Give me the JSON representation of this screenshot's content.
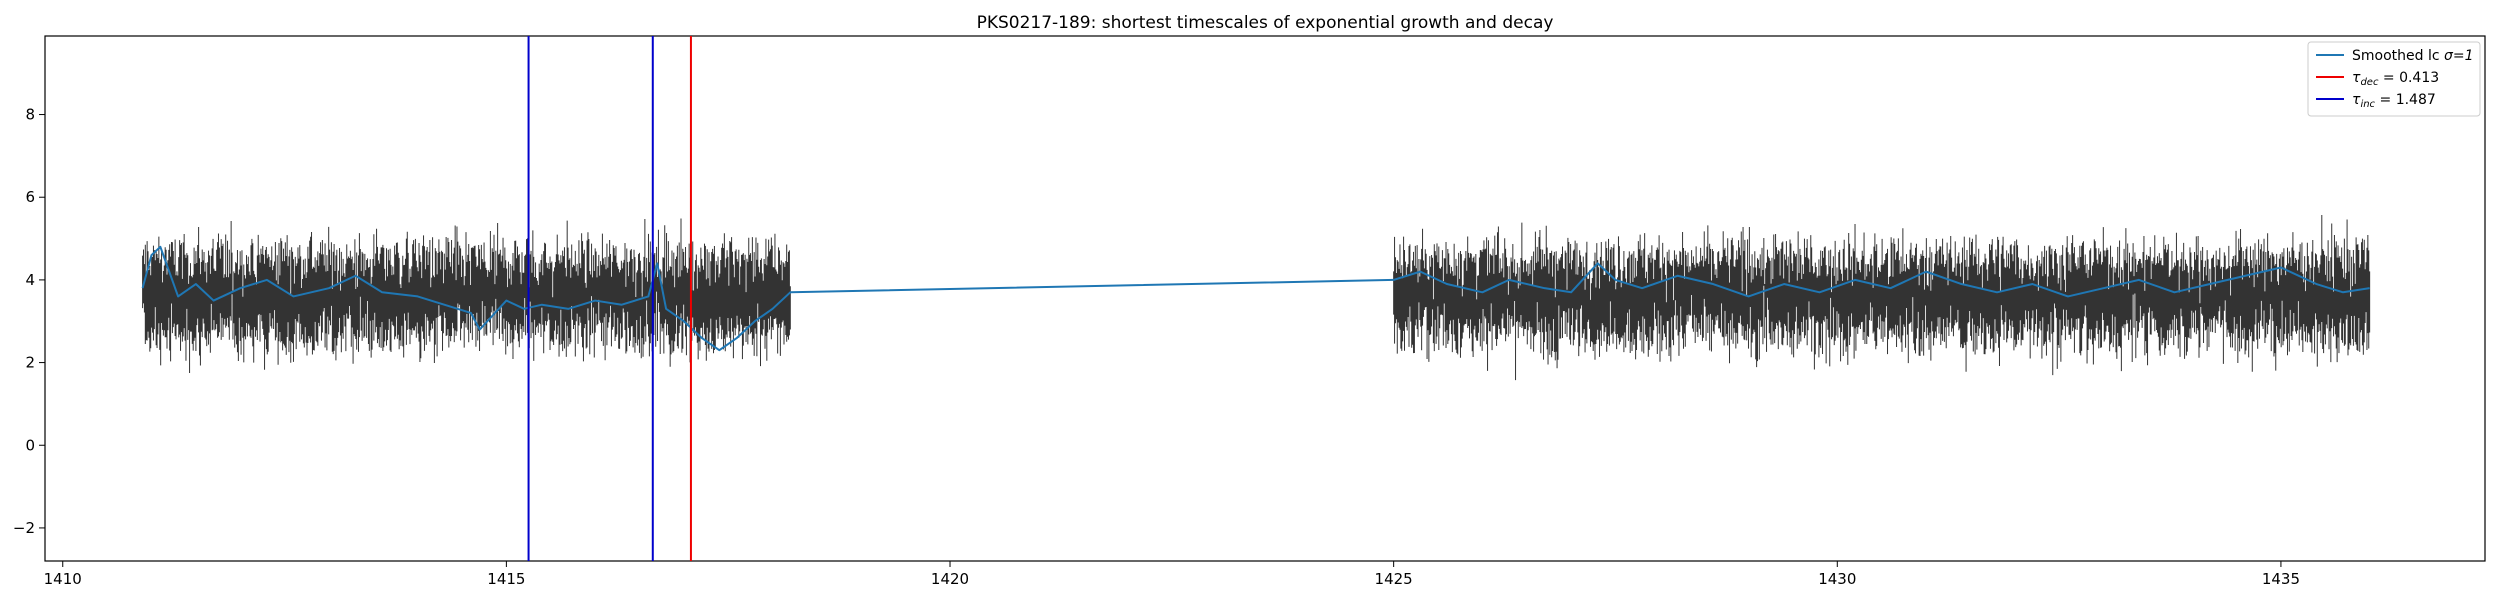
{
  "chart_data": {
    "type": "line",
    "title": "PKS0217-189: shortest timescales of exponential growth and decay",
    "xlabel": "",
    "ylabel": "",
    "xlim": [
      1409.8,
      1437.3
    ],
    "ylim": [
      -2.8,
      9.9
    ],
    "xticks": [
      1410,
      1415,
      1420,
      1425,
      1430,
      1435
    ],
    "yticks": [
      -2,
      0,
      2,
      4,
      6,
      8
    ],
    "grid": false,
    "legend_position": "top-right",
    "segments": [
      {
        "x_start": 1410.9,
        "x_end": 1418.2
      },
      {
        "x_start": 1425.0,
        "x_end": 1436.0
      }
    ],
    "errorbars": {
      "name": "Light curve (errorbars)",
      "color": "#333333",
      "center_mean": 3.6,
      "center_spread": 0.45,
      "half_height_mean": 0.9,
      "count": 1800
    },
    "series": [
      {
        "name": "Smoothed lc",
        "legend_prefix": "Smoothed lc ",
        "legend_sigma": "σ=1",
        "color": "#1f77b4",
        "x": [
          1410.9,
          1411.0,
          1411.1,
          1411.2,
          1411.3,
          1411.5,
          1411.7,
          1412.0,
          1412.3,
          1412.6,
          1413.0,
          1413.3,
          1413.6,
          1414.0,
          1414.3,
          1414.6,
          1414.7,
          1415.0,
          1415.2,
          1415.4,
          1415.7,
          1416.0,
          1416.3,
          1416.6,
          1416.7,
          1416.8,
          1417.0,
          1417.2,
          1417.4,
          1417.6,
          1417.8,
          1418.0,
          1418.2,
          1425.0,
          1425.3,
          1425.6,
          1426.0,
          1426.3,
          1426.7,
          1427.0,
          1427.3,
          1427.5,
          1427.8,
          1428.2,
          1428.6,
          1429.0,
          1429.4,
          1429.8,
          1430.2,
          1430.6,
          1431.0,
          1431.4,
          1431.8,
          1432.2,
          1432.6,
          1433.0,
          1433.4,
          1433.8,
          1434.2,
          1434.6,
          1435.0,
          1435.4,
          1435.7,
          1436.0
        ],
        "y": [
          3.8,
          4.6,
          4.8,
          4.2,
          3.6,
          3.9,
          3.5,
          3.8,
          4.0,
          3.6,
          3.8,
          4.1,
          3.7,
          3.6,
          3.4,
          3.2,
          2.8,
          3.5,
          3.3,
          3.4,
          3.3,
          3.5,
          3.4,
          3.6,
          4.4,
          3.3,
          3.0,
          2.6,
          2.3,
          2.6,
          3.0,
          3.3,
          3.7,
          4.0,
          4.2,
          3.9,
          3.7,
          4.0,
          3.8,
          3.7,
          4.4,
          4.0,
          3.8,
          4.1,
          3.9,
          3.6,
          3.9,
          3.7,
          4.0,
          3.8,
          4.2,
          3.9,
          3.7,
          3.9,
          3.6,
          3.8,
          4.0,
          3.7,
          3.9,
          4.1,
          4.3,
          3.9,
          3.7,
          3.8
        ]
      }
    ],
    "vlines": [
      {
        "name": "τ_inc line 1",
        "x": 1415.25,
        "color": "#0000cc"
      },
      {
        "name": "τ_inc line 2",
        "x": 1416.65,
        "color": "#0000cc"
      },
      {
        "name": "τ_dec line",
        "x": 1417.08,
        "color": "#ee0000"
      }
    ],
    "legend": [
      {
        "label_base": "τ",
        "label_sub": "dec",
        "label_value": " = 0.413",
        "color": "#ee0000"
      },
      {
        "label_base": "τ",
        "label_sub": "inc",
        "label_value": " = 1.487",
        "color": "#0000cc"
      }
    ]
  }
}
